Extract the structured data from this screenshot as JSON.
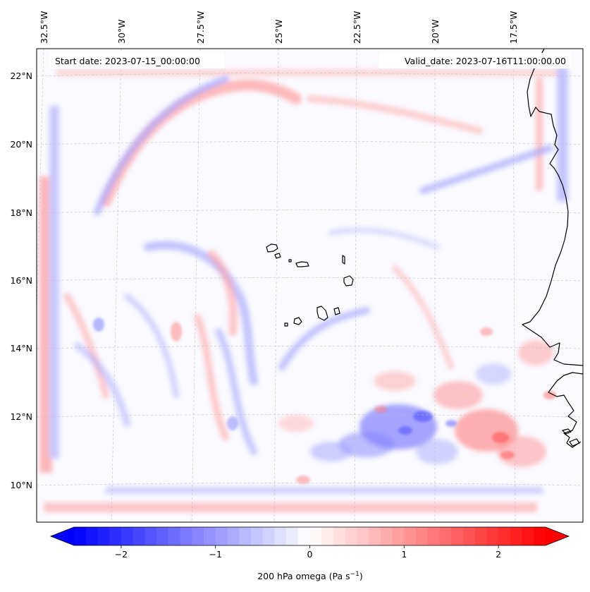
{
  "map": {
    "start_label": "Start date: 2023-07-15_00:00:00",
    "valid_label": "Valid_date: 2023-07-16T11:00:00.00",
    "lon_labels": [
      "32.5°W",
      "30°W",
      "27.5°W",
      "25°W",
      "22.5°W",
      "20°W",
      "17.5°W"
    ],
    "lat_labels": [
      "22°N",
      "20°N",
      "18°N",
      "16°N",
      "14°N",
      "12°N",
      "10°N"
    ],
    "field": "200 hPa omega",
    "units": "Pa s−1"
  },
  "colorbar": {
    "label_main": "200 hPa omega (Pa s",
    "label_sup": "−1",
    "label_close": ")",
    "ticks": [
      "−2",
      "−1",
      "0",
      "1",
      "2"
    ],
    "tick_values": [
      -2,
      -1,
      0,
      1,
      2
    ],
    "range": [
      -2.5,
      2.5
    ],
    "negative_color": "#0000ff",
    "neutral_color": "#ffffff",
    "positive_color": "#ff0000"
  },
  "colors": {
    "coastline": "#000000",
    "gridline": "#bdbdbd",
    "background": "#fafaff"
  }
}
